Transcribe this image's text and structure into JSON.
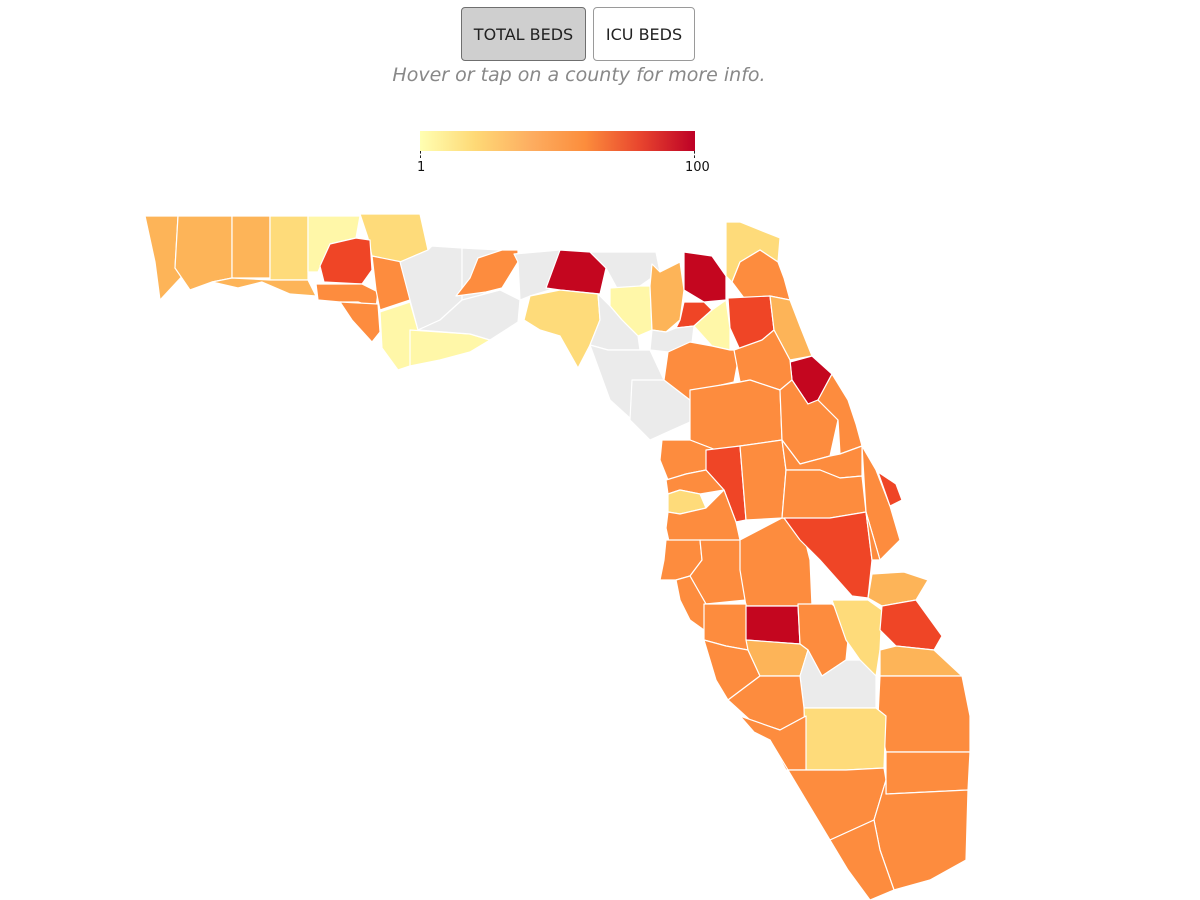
{
  "toggle": {
    "total_beds_label": "TOTAL BEDS",
    "icu_beds_label": "ICU BEDS",
    "active": "TOTAL BEDS"
  },
  "hint_text": "Hover or tap on a county for more info.",
  "legend": {
    "min_label": "1",
    "max_label": "100",
    "colors": [
      "#ffffb2",
      "#fed976",
      "#fdae61",
      "#fc8d3c",
      "#e8452e",
      "#bd0026"
    ],
    "no_data_color": "#ebebeb"
  },
  "palette": {
    "gray": "#ebebeb",
    "pale": "#fff7a8",
    "light": "#fedb7a",
    "tan": "#fdb458",
    "orange": "#fd8c3e",
    "redorange": "#ef4526",
    "crimson": "#c4061f"
  }
}
